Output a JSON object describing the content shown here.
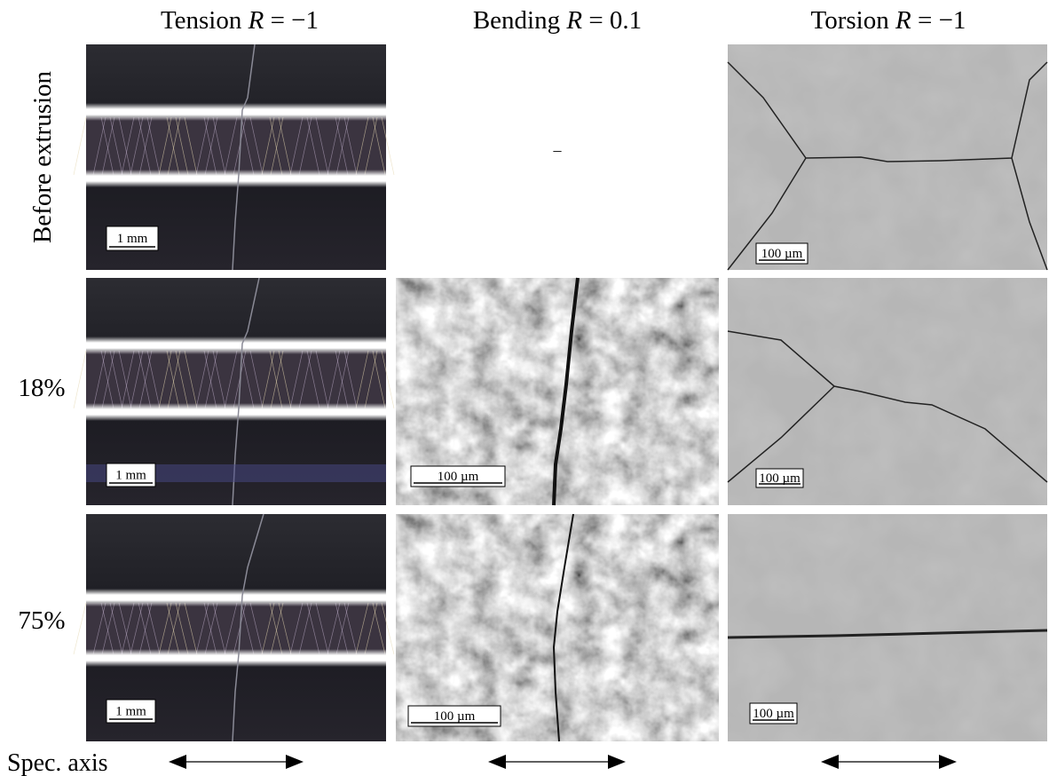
{
  "columns": [
    {
      "name": "Tension",
      "variable": "R",
      "relation": "= −1"
    },
    {
      "name": "Bending",
      "variable": "R",
      "relation": "= 0.1"
    },
    {
      "name": "Torsion",
      "variable": "R",
      "relation": "= −1"
    }
  ],
  "rows": [
    {
      "label": "Before extrusion"
    },
    {
      "label": "18%"
    },
    {
      "label": "75%"
    }
  ],
  "panels": [
    [
      "1 mm",
      "–",
      "100 µm"
    ],
    [
      "1 mm",
      "100 µm",
      "100 µm"
    ],
    [
      "1 mm",
      "100 µm",
      "100 µm"
    ]
  ],
  "footer": "Spec. axis"
}
